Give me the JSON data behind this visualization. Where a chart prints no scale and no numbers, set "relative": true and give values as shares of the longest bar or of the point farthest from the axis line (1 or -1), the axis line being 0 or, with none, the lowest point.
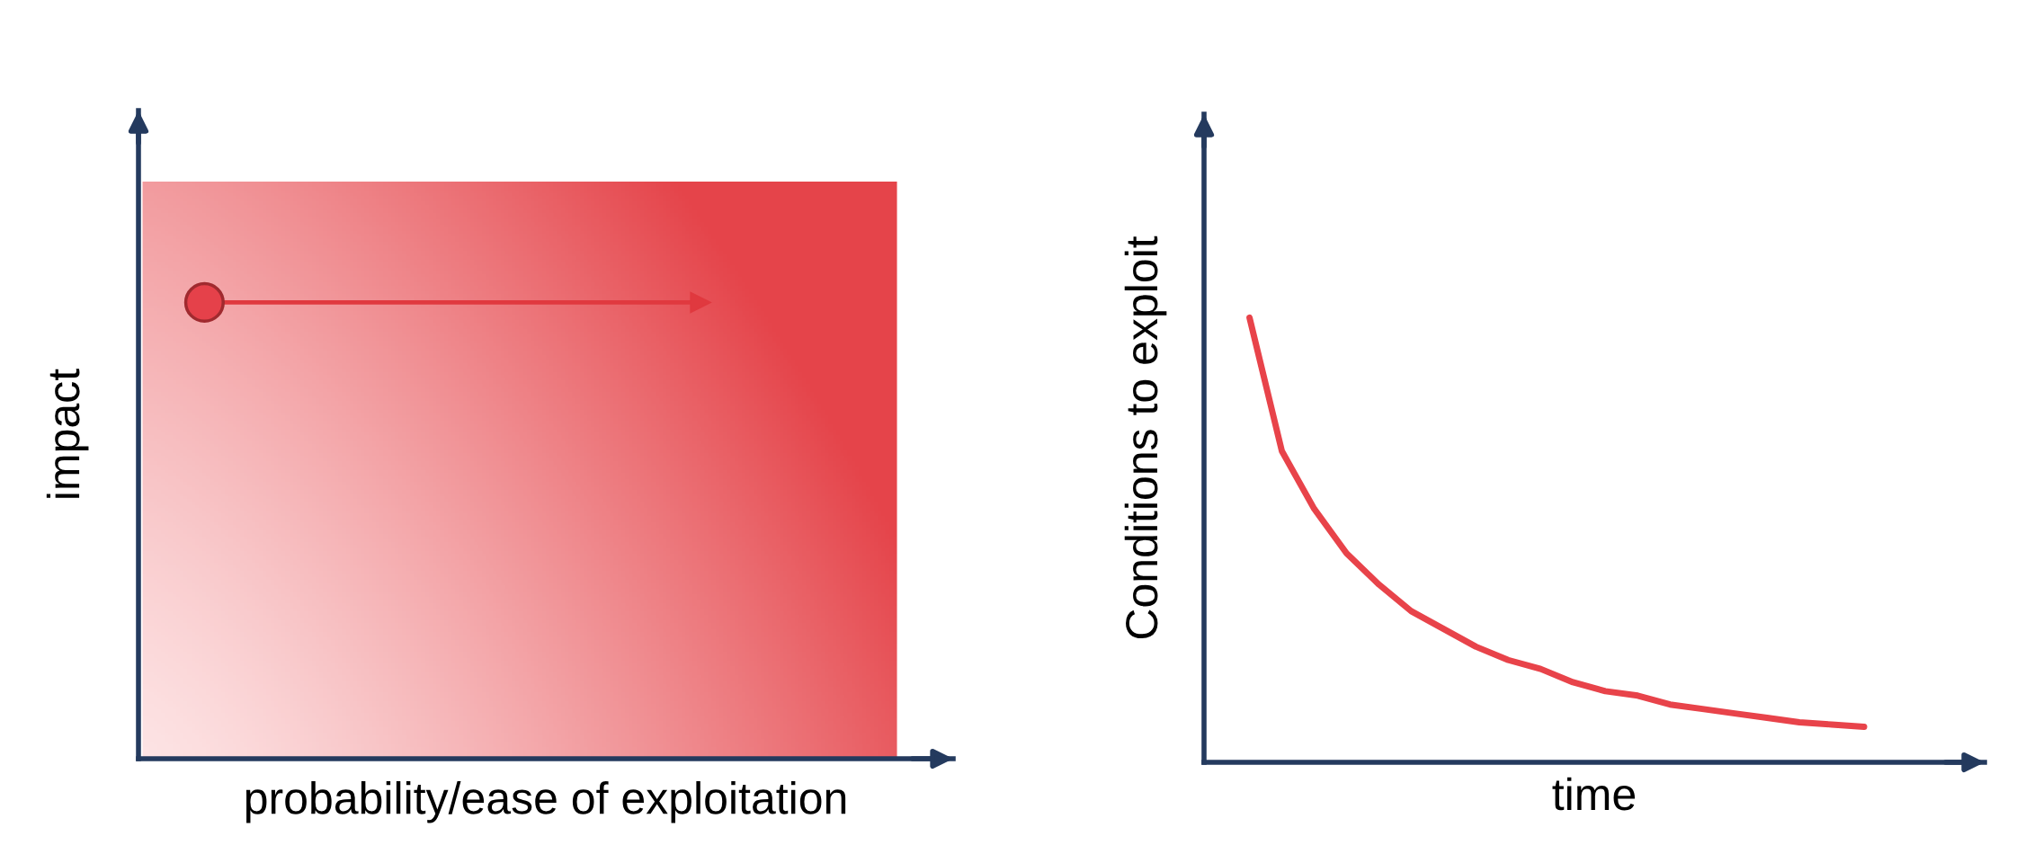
{
  "chart_data": [
    {
      "type": "other",
      "xlabel": "probability/ease of exploitation",
      "ylabel": "impact"
    },
    {
      "type": "line",
      "relative": true,
      "xlabel": "time",
      "ylabel": "Conditions to exploit",
      "categories": [
        null,
        null,
        null,
        null,
        null,
        null,
        null,
        null,
        null,
        null,
        null,
        null,
        null,
        null,
        null,
        null,
        null,
        null,
        null,
        null
      ],
      "series": [
        {
          "color": "#e8434a",
          "values": [
            1,
            0.7,
            0.57,
            0.47,
            0.4,
            0.34,
            0.3,
            0.26,
            0.23,
            0.21,
            0.18,
            0.16,
            0.15,
            0.13,
            0.12,
            0.11,
            0.1,
            0.09,
            0.085,
            0.08
          ]
        }
      ]
    }
  ]
}
